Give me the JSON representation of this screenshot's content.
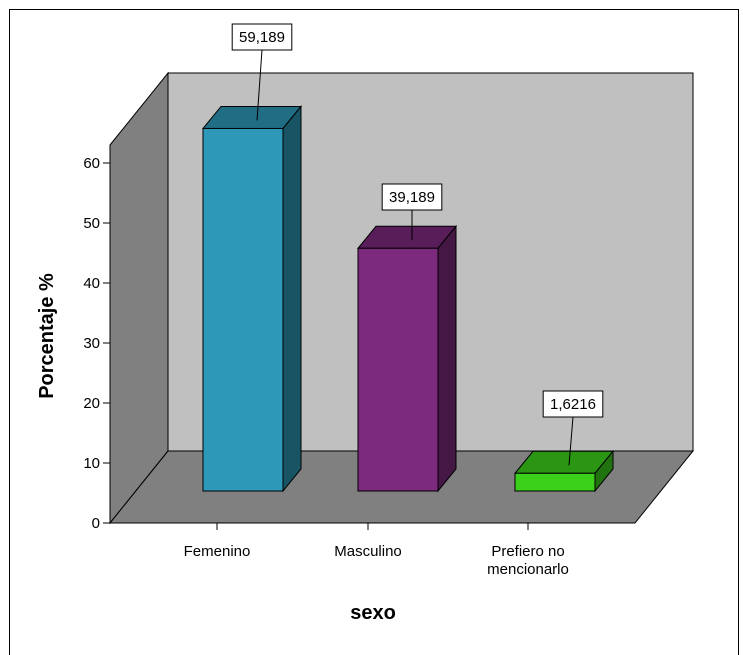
{
  "chart_data": {
    "type": "bar",
    "style": "3d",
    "categories": [
      "Femenino",
      "Masculino",
      "Prefiero no mencionarlo"
    ],
    "category_lines": [
      [
        "Femenino"
      ],
      [
        "Masculino"
      ],
      [
        "Prefiero no",
        "mencionarlo"
      ]
    ],
    "values": [
      59.189,
      39.189,
      1.6216
    ],
    "data_labels": [
      "59,189",
      "39,189",
      "1,6216"
    ],
    "colors": [
      "#2e98b8",
      "#7b2a7d",
      "#3bd11a"
    ],
    "xlabel": "sexo",
    "ylabel": "Porcentaje %",
    "ylim": [
      0,
      60
    ],
    "yticks": [
      0,
      10,
      20,
      30,
      40,
      50,
      60
    ],
    "wall_color": "#c0c0c0",
    "floor_color": "#808080",
    "side_wall_color": "#808080",
    "legend": "none"
  }
}
